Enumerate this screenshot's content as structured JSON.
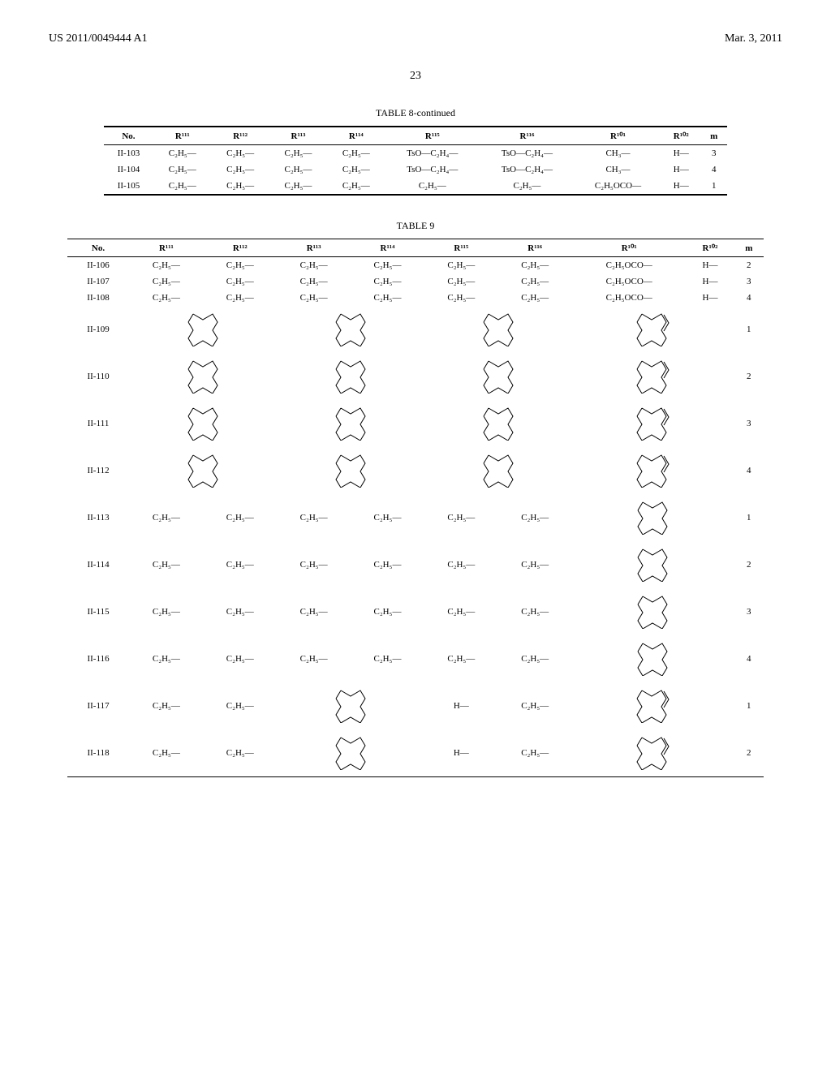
{
  "header": {
    "left": "US 2011/0049444 A1",
    "right": "Mar. 3, 2011"
  },
  "page_number": "23",
  "table8": {
    "caption": "TABLE 8-continued",
    "columns": [
      "No.",
      "R¹¹¹",
      "R¹¹²",
      "R¹¹³",
      "R¹¹⁴",
      "R¹¹⁵",
      "R¹¹⁶",
      "R¹⁰¹",
      "R¹⁰²",
      "m"
    ],
    "rows": [
      [
        "II-103",
        "C₂H₅—",
        "C₂H₅—",
        "C₂H₅—",
        "C₂H₅—",
        "TsO—C₂H₄—",
        "TsO—C₂H₄—",
        "CH₃—",
        "H—",
        "3"
      ],
      [
        "II-104",
        "C₂H₅—",
        "C₂H₅—",
        "C₂H₅—",
        "C₂H₅—",
        "TsO—C₂H₄—",
        "TsO—C₂H₄—",
        "CH₃—",
        "H—",
        "4"
      ],
      [
        "II-105",
        "C₂H₅—",
        "C₂H₅—",
        "C₂H₅—",
        "C₂H₅—",
        "C₂H₅—",
        "C₂H₅—",
        "C₂H₅OCO—",
        "H—",
        "1"
      ]
    ]
  },
  "table9": {
    "caption": "TABLE 9",
    "columns": [
      "No.",
      "R¹¹¹",
      "R¹¹²",
      "R¹¹³",
      "R¹¹⁴",
      "R¹¹⁵",
      "R¹¹⁶",
      "R¹⁰¹",
      "R¹⁰²",
      "m"
    ],
    "text_rows": [
      [
        "II-106",
        "C₂H₅—",
        "C₂H₅—",
        "C₂H₅—",
        "C₂H₅—",
        "C₂H₅—",
        "C₂H₅—",
        "C₂H₅OCO—",
        "H—",
        "2"
      ],
      [
        "II-107",
        "C₂H₅—",
        "C₂H₅—",
        "C₂H₅—",
        "C₂H₅—",
        "C₂H₅—",
        "C₂H₅—",
        "C₂H₅OCO—",
        "H—",
        "3"
      ],
      [
        "II-108",
        "C₂H₅—",
        "C₂H₅—",
        "C₂H₅—",
        "C₂H₅—",
        "C₂H₅—",
        "C₂H₅—",
        "C₂H₅OCO—",
        "H—",
        "4"
      ]
    ],
    "hex_rows_a": [
      {
        "no": "II-109",
        "m": "1"
      },
      {
        "no": "II-110",
        "m": "2"
      },
      {
        "no": "II-111",
        "m": "3"
      },
      {
        "no": "II-112",
        "m": "4"
      }
    ],
    "hex_rows_b": [
      {
        "no": "II-113",
        "m": "1"
      },
      {
        "no": "II-114",
        "m": "2"
      },
      {
        "no": "II-115",
        "m": "3"
      },
      {
        "no": "II-116",
        "m": "4"
      }
    ],
    "hex_rows_c": [
      {
        "no": "II-117",
        "m": "1"
      },
      {
        "no": "II-118",
        "m": "2"
      }
    ],
    "c2h5": "C₂H₅—",
    "h": "H—"
  },
  "hexagon": {
    "single_svg_width": 40,
    "single_svg_height": 44,
    "double_svg_width": 46,
    "double_svg_height": 44,
    "stroke": "#000000",
    "stroke_width": 1,
    "fill": "none"
  }
}
